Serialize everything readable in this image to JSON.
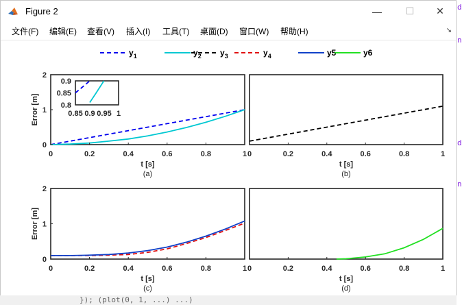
{
  "window": {
    "title": "Figure 2",
    "controls": {
      "minimize": "—",
      "maximize": "☐",
      "close": "✕"
    }
  },
  "menubar": {
    "items": [
      "文件(F)",
      "编辑(E)",
      "查看(V)",
      "插入(I)",
      "工具(T)",
      "桌面(D)",
      "窗口(W)",
      "帮助(H)"
    ],
    "dock_label": "↘"
  },
  "colors": {
    "y1": "#0000ee",
    "y2": "#00c8d2",
    "y3": "#000000",
    "y4": "#e01010",
    "y5": "#1040c8",
    "y6": "#22e022",
    "axes": "#262626"
  },
  "legend": {
    "entries": [
      {
        "base": "y",
        "sub": "1",
        "style": "dashed",
        "color_key": "y1"
      },
      {
        "base": "y",
        "sub": "2",
        "style": "solid",
        "color_key": "y2"
      },
      {
        "base": "y",
        "sub": "3",
        "style": "dashed",
        "color_key": "y3"
      },
      {
        "base": "y",
        "sub": "4",
        "style": "dashed",
        "color_key": "y4"
      },
      {
        "base": "y5",
        "sub": "",
        "style": "solid",
        "color_key": "y5"
      },
      {
        "base": "y6",
        "sub": "",
        "style": "solid",
        "color_key": "y6"
      }
    ]
  },
  "chart_data": [
    {
      "type": "line",
      "panel_label": "(a)",
      "xlabel": "t [s]",
      "ylabel": "Error [m]",
      "xlim": [
        0,
        1
      ],
      "ylim": [
        0,
        2
      ],
      "xticks": [
        "0",
        "0.2",
        "0.4",
        "0.6",
        "0.8",
        "1"
      ],
      "yticks": [
        "0",
        "1",
        "2"
      ],
      "series": [
        {
          "name": "y1",
          "style": "dashed",
          "x": [
            0,
            0.1,
            0.2,
            0.3,
            0.4,
            0.5,
            0.6,
            0.7,
            0.8,
            0.9,
            1.0
          ],
          "y": [
            0,
            0.1,
            0.2,
            0.3,
            0.4,
            0.5,
            0.6,
            0.7,
            0.8,
            0.9,
            1.0
          ]
        },
        {
          "name": "y2",
          "style": "solid",
          "x": [
            0,
            0.1,
            0.2,
            0.3,
            0.4,
            0.5,
            0.6,
            0.7,
            0.8,
            0.9,
            1.0
          ],
          "y": [
            0,
            0.015,
            0.045,
            0.1,
            0.16,
            0.25,
            0.36,
            0.49,
            0.64,
            0.81,
            1.0
          ]
        }
      ],
      "inset": {
        "xlim": [
          0.85,
          1
        ],
        "ylim": [
          0.8,
          0.9
        ],
        "xticks": [
          "0.85",
          "0.9",
          "0.95",
          "1"
        ],
        "yticks": [
          "0.8",
          "0.85",
          "0.9"
        ],
        "series": [
          {
            "name": "y1",
            "style": "dashed",
            "x": [
              0.85,
              0.875,
              0.9
            ],
            "y": [
              0.85,
              0.875,
              0.9
            ]
          },
          {
            "name": "y2",
            "style": "solid",
            "x": [
              0.9,
              0.92,
              0.949
            ],
            "y": [
              0.81,
              0.846,
              0.9
            ]
          }
        ]
      }
    },
    {
      "type": "line",
      "panel_label": "(b)",
      "xlabel": "t [s]",
      "ylabel": "",
      "xlim": [
        0,
        1
      ],
      "ylim": [
        0,
        2
      ],
      "xticks": [
        "0",
        "0.2",
        "0.4",
        "0.6",
        "0.8",
        "1"
      ],
      "yticks": [],
      "series": [
        {
          "name": "y3",
          "style": "dashed",
          "x": [
            0,
            1
          ],
          "y": [
            0.1,
            1.1
          ]
        }
      ]
    },
    {
      "type": "line",
      "panel_label": "(c)",
      "xlabel": "t [s]",
      "ylabel": "Error [m]",
      "xlim": [
        0,
        1
      ],
      "ylim": [
        0,
        2
      ],
      "xticks": [
        "0",
        "0.2",
        "0.4",
        "0.6",
        "0.8",
        "1"
      ],
      "yticks": [
        "0",
        "1",
        "2"
      ],
      "series": [
        {
          "name": "y4",
          "style": "dashed",
          "x": [
            0,
            0.1,
            0.2,
            0.3,
            0.4,
            0.5,
            0.6,
            0.7,
            0.8,
            0.9,
            1.0
          ],
          "y": [
            0.1,
            0.1,
            0.1,
            0.11,
            0.13,
            0.19,
            0.29,
            0.44,
            0.61,
            0.81,
            1.02
          ]
        },
        {
          "name": "y5",
          "style": "solid",
          "x": [
            0,
            0.1,
            0.2,
            0.3,
            0.4,
            0.5,
            0.6,
            0.7,
            0.8,
            0.9,
            1.0
          ],
          "y": [
            0.1,
            0.1,
            0.11,
            0.13,
            0.17,
            0.24,
            0.34,
            0.48,
            0.65,
            0.85,
            1.08
          ]
        }
      ]
    },
    {
      "type": "line",
      "panel_label": "(d)",
      "xlabel": "t [s]",
      "ylabel": "",
      "xlim": [
        0,
        1
      ],
      "ylim": [
        0,
        2
      ],
      "xticks": [
        "0",
        "0.2",
        "0.4",
        "0.6",
        "0.8",
        "1"
      ],
      "yticks": [],
      "series": [
        {
          "name": "y6",
          "style": "solid",
          "x": [
            0.45,
            0.5,
            0.6,
            0.7,
            0.8,
            0.9,
            1.0
          ],
          "y": [
            0,
            0.01,
            0.06,
            0.15,
            0.32,
            0.56,
            0.87
          ]
        }
      ]
    }
  ],
  "side_chars": [
    "d",
    "n",
    "d",
    "n"
  ],
  "bottom_text": "});  (plot(0, 1, ...) ...)"
}
